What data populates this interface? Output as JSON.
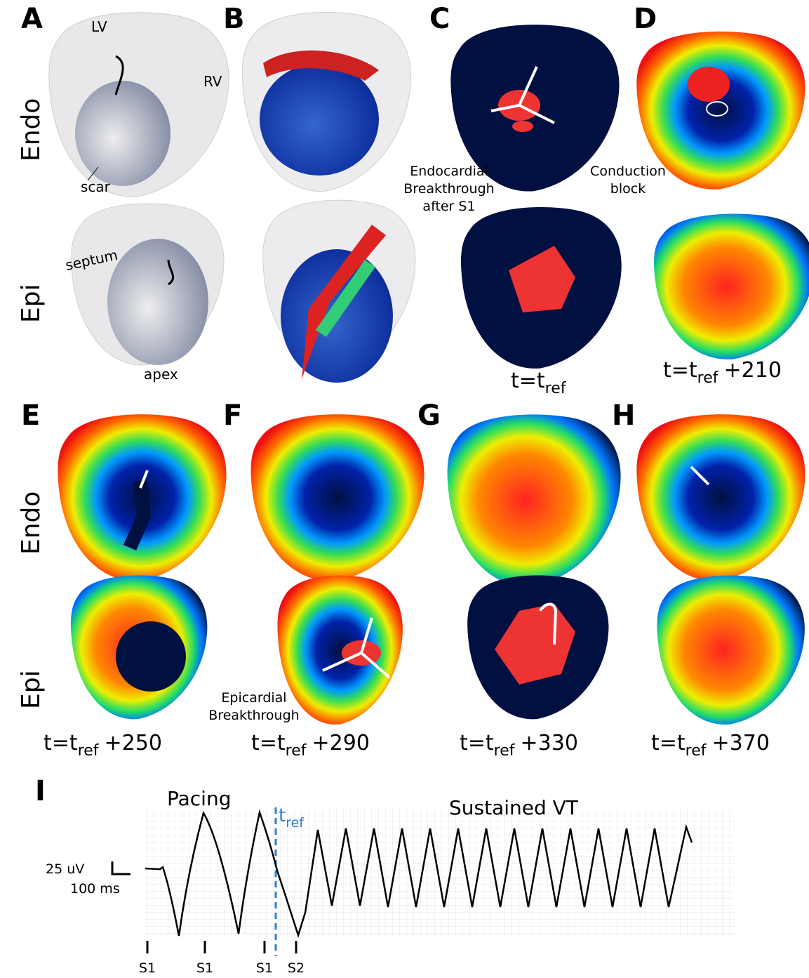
{
  "panels": {
    "letters": [
      "A",
      "B",
      "C",
      "D",
      "E",
      "F",
      "G",
      "H",
      "I"
    ],
    "row_labels": [
      "Endo",
      "Epi",
      "Endo",
      "Epi"
    ],
    "a_annotations": [
      "LV",
      "RV",
      "scar",
      "septum",
      "apex"
    ],
    "c_note": [
      "Endocardial",
      "Breakthrough",
      "after S1"
    ],
    "d_note": [
      "Conduction",
      "block"
    ],
    "f_note": [
      "Epicardial",
      "Breakthrough"
    ],
    "times": [
      {
        "prefix": "t=t",
        "sub": "ref"
      },
      {
        "prefix": "t=t",
        "sub": "ref",
        "suffix": "+210"
      },
      {
        "prefix": "t=t",
        "sub": "ref",
        "suffix": "+250"
      },
      {
        "prefix": "t=t",
        "sub": "ref",
        "suffix": "+290"
      },
      {
        "prefix": "t=t",
        "sub": "ref",
        "suffix": "+330"
      },
      {
        "prefix": "t=t",
        "sub": "ref",
        "suffix": "+370"
      }
    ]
  },
  "ecg": {
    "pacing": "Pacing",
    "vt": "Sustained VT",
    "tref": {
      "main": "t",
      "sub": "ref"
    },
    "scale_v": "25 uV",
    "scale_t": "100 ms",
    "stimuli": [
      "S1",
      "S1",
      "S1",
      "S2"
    ]
  }
}
